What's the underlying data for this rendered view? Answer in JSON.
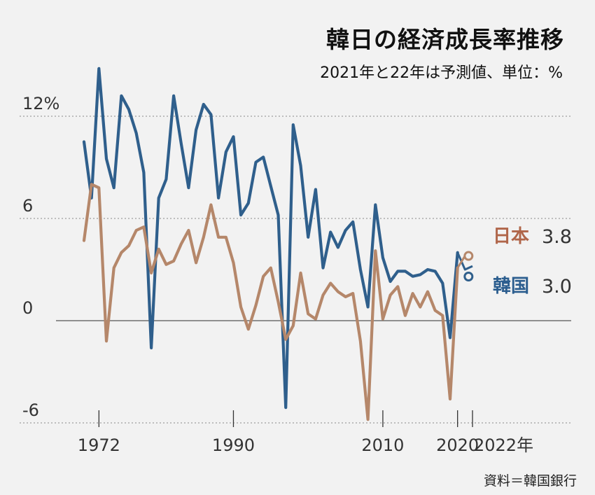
{
  "title": "韓日の経済成長率推移",
  "subtitle": "2021年と22年は予測値、単位：%",
  "source": "資料＝韓国銀行",
  "colors": {
    "korea": "#2f5f8c",
    "japan": "#b5876a",
    "japan_label": "#b0664a",
    "korea_label": "#2c5e8f",
    "grid": "#888888",
    "background": "#f2f2f2"
  },
  "chart_data": {
    "type": "line",
    "title": "韓日の経済成長率推移",
    "subtitle": "2021年と22年は予測値、単位：%",
    "xlim": [
      1970,
      2022
    ],
    "ylim": [
      -6,
      15
    ],
    "yticks": [
      {
        "value": 12,
        "label": "12%"
      },
      {
        "value": 6,
        "label": "6"
      },
      {
        "value": 0,
        "label": "0"
      },
      {
        "value": -6,
        "label": "-6"
      }
    ],
    "xticks": [
      {
        "value": 1972,
        "label": "1972"
      },
      {
        "value": 1990,
        "label": "1990"
      },
      {
        "value": 2010,
        "label": "2010"
      },
      {
        "value": 2020,
        "label": "2020"
      },
      {
        "value": 2022,
        "label": "2022年"
      }
    ],
    "forecast_years": [
      2021,
      2022
    ],
    "series": [
      {
        "name": "韓国",
        "end_label": "3.0",
        "x": [
          1970,
          1971,
          1972,
          1973,
          1974,
          1975,
          1976,
          1977,
          1978,
          1979,
          1980,
          1981,
          1982,
          1983,
          1984,
          1985,
          1986,
          1987,
          1988,
          1989,
          1990,
          1991,
          1992,
          1993,
          1994,
          1995,
          1996,
          1997,
          1998,
          1999,
          2000,
          2001,
          2002,
          2003,
          2004,
          2005,
          2006,
          2007,
          2008,
          2009,
          2010,
          2011,
          2012,
          2013,
          2014,
          2015,
          2016,
          2017,
          2018,
          2019,
          2020,
          2021,
          2022
        ],
        "values": [
          10.5,
          7.2,
          14.8,
          9.5,
          7.8,
          13.2,
          12.4,
          11.0,
          8.7,
          -1.6,
          7.2,
          8.3,
          13.2,
          10.4,
          7.8,
          11.2,
          12.7,
          12.1,
          7.2,
          9.9,
          10.8,
          6.2,
          6.9,
          9.3,
          9.6,
          7.9,
          6.2,
          -5.1,
          11.5,
          9.1,
          4.9,
          7.7,
          3.1,
          5.2,
          4.3,
          5.3,
          5.8,
          3.0,
          0.8,
          6.8,
          3.7,
          2.3,
          2.9,
          2.9,
          2.6,
          2.7,
          3.0,
          2.9,
          2.2,
          -1.0,
          4.0,
          3.0,
          3.2
        ]
      },
      {
        "name": "日本",
        "end_label": "3.8",
        "x": [
          1970,
          1971,
          1972,
          1973,
          1974,
          1975,
          1976,
          1977,
          1978,
          1979,
          1980,
          1981,
          1982,
          1983,
          1984,
          1985,
          1986,
          1987,
          1988,
          1989,
          1990,
          1991,
          1992,
          1993,
          1994,
          1995,
          1996,
          1997,
          1998,
          1999,
          2000,
          2001,
          2002,
          2003,
          2004,
          2005,
          2006,
          2007,
          2008,
          2009,
          2010,
          2011,
          2012,
          2013,
          2014,
          2015,
          2016,
          2017,
          2018,
          2019,
          2020,
          2021,
          2022
        ],
        "values": [
          4.7,
          8.0,
          7.8,
          -1.2,
          3.1,
          4.0,
          4.4,
          5.3,
          5.5,
          2.8,
          4.2,
          3.3,
          3.5,
          4.5,
          5.3,
          3.4,
          4.9,
          6.8,
          4.9,
          4.9,
          3.4,
          0.8,
          -0.5,
          0.9,
          2.6,
          3.1,
          1.1,
          -1.1,
          -0.3,
          2.8,
          0.4,
          0.1,
          1.5,
          2.2,
          1.7,
          1.4,
          1.6,
          -1.2,
          -5.8,
          4.1,
          0.1,
          1.5,
          2.0,
          0.3,
          1.6,
          0.8,
          1.7,
          0.6,
          0.3,
          -4.6,
          3.1,
          3.8,
          3.7
        ]
      }
    ]
  }
}
